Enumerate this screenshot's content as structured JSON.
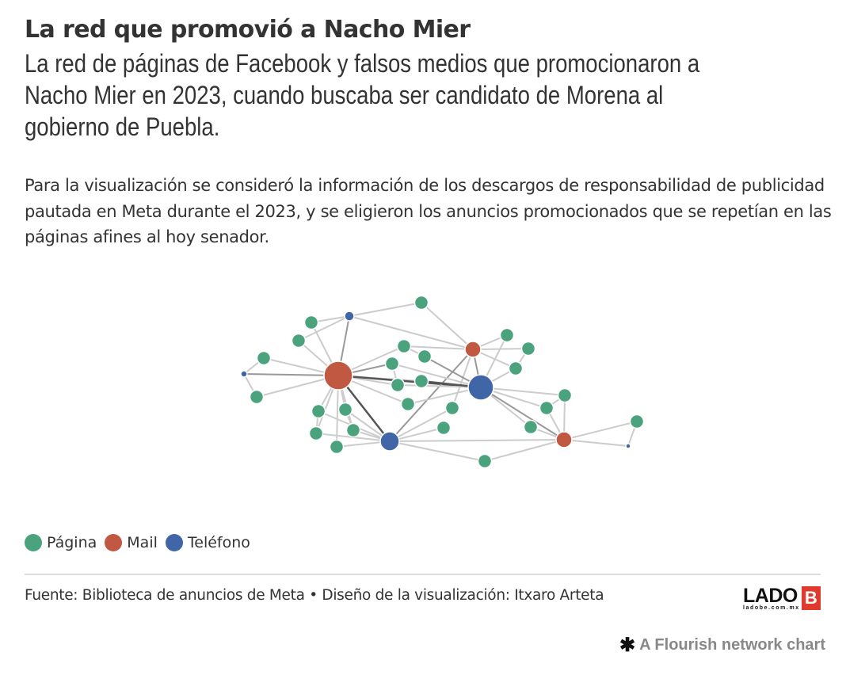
{
  "header": {
    "title": "La red que promovió a Nacho Mier",
    "subtitle": "La red de páginas de Facebook y falsos medios que promocionaron a Nacho Mier en 2023, cuando buscaba ser candidato de Morena al gobierno de Puebla.",
    "description": "Para la visualización se consideró la información de los descargos de responsabilidad de publicidad pautada en Meta durante el 2023, y se eligieron los anuncios promocionados que se repetían en las páginas afines al hoy senador."
  },
  "colors": {
    "pagina": "#4ba37d",
    "mail": "#c05842",
    "telefono": "#4166a8",
    "edge": "#cccccc",
    "edge_strong": "#555555"
  },
  "legend": [
    {
      "label": "Página",
      "type": "pagina"
    },
    {
      "label": "Mail",
      "type": "mail"
    },
    {
      "label": "Teléfono",
      "type": "telefono"
    }
  ],
  "network": {
    "node_types": [
      "pagina",
      "mail",
      "telefono"
    ],
    "nodes": [
      {
        "id": "M1",
        "type": "mail",
        "weight": 18
      },
      {
        "id": "M2",
        "type": "mail",
        "weight": 10
      },
      {
        "id": "M3",
        "type": "mail",
        "weight": 10
      },
      {
        "id": "T1",
        "type": "telefono",
        "weight": 16
      },
      {
        "id": "T2",
        "type": "telefono",
        "weight": 12
      },
      {
        "id": "T3",
        "type": "telefono",
        "weight": 6
      },
      {
        "id": "T4",
        "type": "telefono",
        "weight": 4
      },
      {
        "id": "T5",
        "type": "telefono",
        "weight": 3
      },
      {
        "id": "P1",
        "type": "pagina"
      },
      {
        "id": "P2",
        "type": "pagina"
      },
      {
        "id": "P3",
        "type": "pagina"
      },
      {
        "id": "P4",
        "type": "pagina"
      },
      {
        "id": "P5",
        "type": "pagina"
      },
      {
        "id": "P6",
        "type": "pagina"
      },
      {
        "id": "P7",
        "type": "pagina"
      },
      {
        "id": "P8",
        "type": "pagina"
      },
      {
        "id": "P9",
        "type": "pagina"
      },
      {
        "id": "P10",
        "type": "pagina"
      },
      {
        "id": "P11",
        "type": "pagina"
      },
      {
        "id": "P12",
        "type": "pagina"
      },
      {
        "id": "P13",
        "type": "pagina"
      },
      {
        "id": "P14",
        "type": "pagina"
      },
      {
        "id": "P15",
        "type": "pagina"
      },
      {
        "id": "P16",
        "type": "pagina"
      },
      {
        "id": "P17",
        "type": "pagina"
      },
      {
        "id": "P18",
        "type": "pagina"
      },
      {
        "id": "P19",
        "type": "pagina"
      },
      {
        "id": "P20",
        "type": "pagina"
      },
      {
        "id": "P21",
        "type": "pagina"
      },
      {
        "id": "P22",
        "type": "pagina"
      },
      {
        "id": "P23",
        "type": "pagina"
      },
      {
        "id": "P24",
        "type": "pagina"
      },
      {
        "id": "P25",
        "type": "pagina"
      },
      {
        "id": "P26",
        "type": "pagina"
      }
    ],
    "edges": [
      [
        "M1",
        "T3",
        2
      ],
      [
        "M1",
        "T4",
        2
      ],
      [
        "M1",
        "P2",
        1
      ],
      [
        "M1",
        "P3",
        1
      ],
      [
        "M1",
        "P4",
        1
      ],
      [
        "M1",
        "P5",
        1
      ],
      [
        "M1",
        "P6",
        1
      ],
      [
        "M1",
        "P8",
        2
      ],
      [
        "M1",
        "P9",
        1
      ],
      [
        "M1",
        "P10",
        1
      ],
      [
        "M1",
        "P11",
        1
      ],
      [
        "M1",
        "P12",
        1
      ],
      [
        "M1",
        "P13",
        1
      ],
      [
        "M1",
        "P14",
        1
      ],
      [
        "M1",
        "P15",
        1
      ],
      [
        "M1",
        "P16",
        1
      ],
      [
        "M1",
        "T1",
        3
      ],
      [
        "M1",
        "T2",
        3
      ],
      [
        "T3",
        "P1",
        1
      ],
      [
        "T3",
        "P2",
        1
      ],
      [
        "T3",
        "P3",
        1
      ],
      [
        "T3",
        "M2",
        1
      ],
      [
        "P1",
        "M2",
        1
      ],
      [
        "T4",
        "P4",
        1
      ],
      [
        "T4",
        "P5",
        1
      ],
      [
        "M2",
        "T1",
        2
      ],
      [
        "M2",
        "T2",
        2
      ],
      [
        "M2",
        "P19",
        1
      ],
      [
        "M2",
        "P20",
        1
      ],
      [
        "M2",
        "P21",
        1
      ],
      [
        "M2",
        "P6",
        1
      ],
      [
        "M2",
        "P17",
        1
      ],
      [
        "T1",
        "P7",
        2
      ],
      [
        "T1",
        "P8",
        1
      ],
      [
        "T1",
        "P9",
        1
      ],
      [
        "T1",
        "P10",
        3
      ],
      [
        "T1",
        "P11",
        1
      ],
      [
        "T1",
        "P19",
        1
      ],
      [
        "T1",
        "P21",
        1
      ],
      [
        "T1",
        "P22",
        1
      ],
      [
        "T1",
        "P23",
        1
      ],
      [
        "T1",
        "P24",
        1
      ],
      [
        "T1",
        "M3",
        2
      ],
      [
        "T2",
        "P12",
        1
      ],
      [
        "T2",
        "P13",
        1
      ],
      [
        "T2",
        "P14",
        1
      ],
      [
        "T2",
        "P15",
        1
      ],
      [
        "T2",
        "P16",
        1
      ],
      [
        "T2",
        "P17",
        1
      ],
      [
        "T2",
        "P18",
        1
      ],
      [
        "T2",
        "P25",
        1
      ],
      [
        "T2",
        "M3",
        1
      ],
      [
        "M3",
        "P22",
        1
      ],
      [
        "M3",
        "P23",
        1
      ],
      [
        "M3",
        "P24",
        1
      ],
      [
        "M3",
        "P25",
        1
      ],
      [
        "M3",
        "P26",
        1
      ],
      [
        "M3",
        "T5",
        1
      ],
      [
        "P26",
        "T5",
        1
      ],
      [
        "P6",
        "P7",
        1
      ],
      [
        "P8",
        "P9",
        1
      ],
      [
        "P12",
        "P14",
        1
      ],
      [
        "P13",
        "P15",
        1
      ],
      [
        "P20",
        "P21",
        1
      ],
      [
        "P22",
        "P23",
        1
      ]
    ]
  },
  "footer": {
    "source": "Fuente: Biblioteca de anuncios de Meta • Diseño de la visualización: Itxaro Arteta",
    "logo_text": "LADO",
    "logo_letter": "B",
    "logo_sub": "ladobe.com.mx",
    "credit": "A Flourish network chart",
    "credit_icon": "✱"
  }
}
